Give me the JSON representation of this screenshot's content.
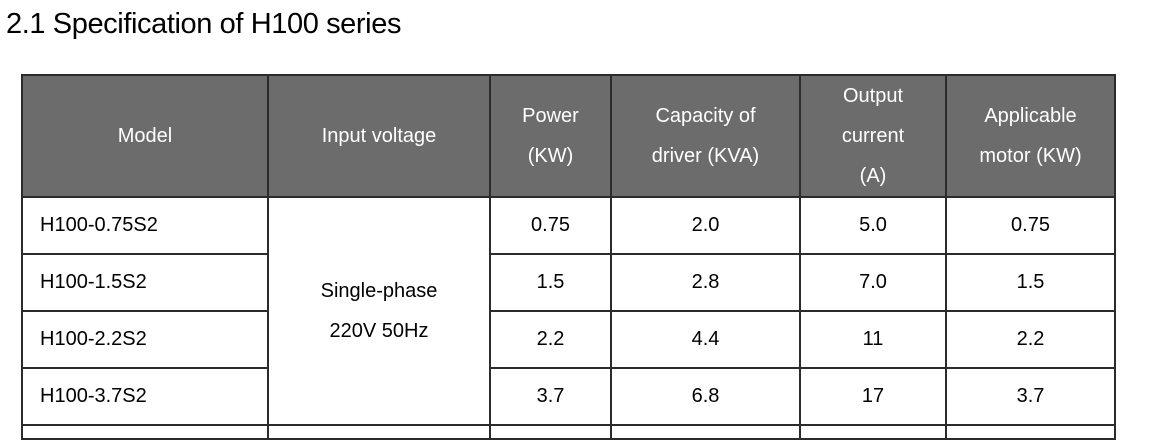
{
  "heading": "2.1 Specification of H100 series",
  "table": {
    "headers": {
      "model": "Model",
      "input_voltage": "Input voltage",
      "power": [
        "Power",
        "(KW)"
      ],
      "capacity": [
        "Capacity of",
        "driver (KVA)"
      ],
      "output_current": [
        "Output",
        "current",
        "(A)"
      ],
      "applicable_motor": [
        "Applicable",
        "motor (KW)"
      ]
    },
    "input_voltage_value": [
      "Single-phase",
      "220V 50Hz"
    ],
    "rows": [
      {
        "model": "H100-0.75S2",
        "power": "0.75",
        "capacity": "2.0",
        "current": "5.0",
        "motor": "0.75"
      },
      {
        "model": "H100-1.5S2",
        "power": "1.5",
        "capacity": "2.8",
        "current": "7.0",
        "motor": "1.5"
      },
      {
        "model": "H100-2.2S2",
        "power": "2.2",
        "capacity": "4.4",
        "current": "11",
        "motor": "2.2"
      },
      {
        "model": "H100-3.7S2",
        "power": "3.7",
        "capacity": "6.8",
        "current": "17",
        "motor": "3.7"
      }
    ]
  }
}
